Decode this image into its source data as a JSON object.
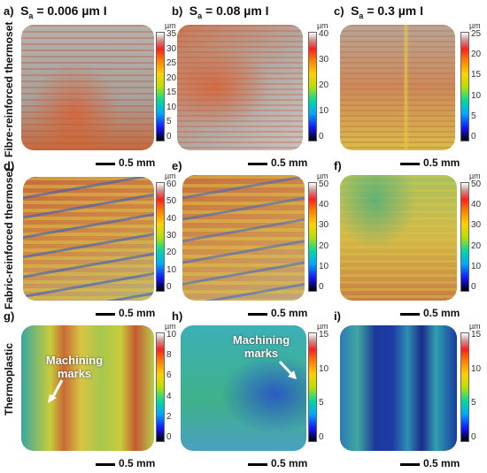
{
  "roughness_headers": [
    {
      "letter": "a)",
      "prefix": "S",
      "sub": "a",
      "text": " = 0.006 µm I"
    },
    {
      "letter": "b)",
      "prefix": "S",
      "sub": "a",
      "text": " = 0.08 µm I"
    },
    {
      "letter": "c)",
      "prefix": "S",
      "sub": "a",
      "text": " = 0.3 µm I"
    }
  ],
  "row_titles": [
    "Fibre-reinforced thermoset",
    "Fabric-reinforced thermoset",
    "Thermoplastic"
  ],
  "panel_letters": [
    "d)",
    "e)",
    "f)",
    "g)",
    "h)",
    "i)"
  ],
  "unit": "µm",
  "scale_bar_label": "0.5 mm",
  "annotations": {
    "g": [
      "Machining",
      "marks"
    ],
    "h": [
      "Machining",
      "marks"
    ]
  },
  "colorbar_ticks": {
    "a": [
      "35",
      "30",
      "25",
      "20",
      "15",
      "10",
      "5",
      "0"
    ],
    "b": [
      "40",
      "30",
      "20",
      "10",
      "0"
    ],
    "c": [
      "25",
      "20",
      "15",
      "10",
      "5",
      "0"
    ],
    "d": [
      "60",
      "50",
      "40",
      "30",
      "20",
      "10",
      "0"
    ],
    "e": [
      "50",
      "40",
      "30",
      "20",
      "10",
      "0"
    ],
    "f": [
      "50",
      "40",
      "30",
      "20",
      "10",
      "0"
    ],
    "g": [
      "10",
      "8",
      "6",
      "4",
      "2",
      "0"
    ],
    "h": [
      "15",
      "10",
      "5",
      "0"
    ],
    "i": [
      "15",
      "10",
      "5",
      "0"
    ]
  },
  "colors": {
    "grey_surface": "#a9a5a2",
    "orange": "#d9642a",
    "yellow": "#d8cc3a",
    "green": "#3fb08a",
    "blue": "#2a5fd0",
    "navy": "#1a2a8a"
  }
}
